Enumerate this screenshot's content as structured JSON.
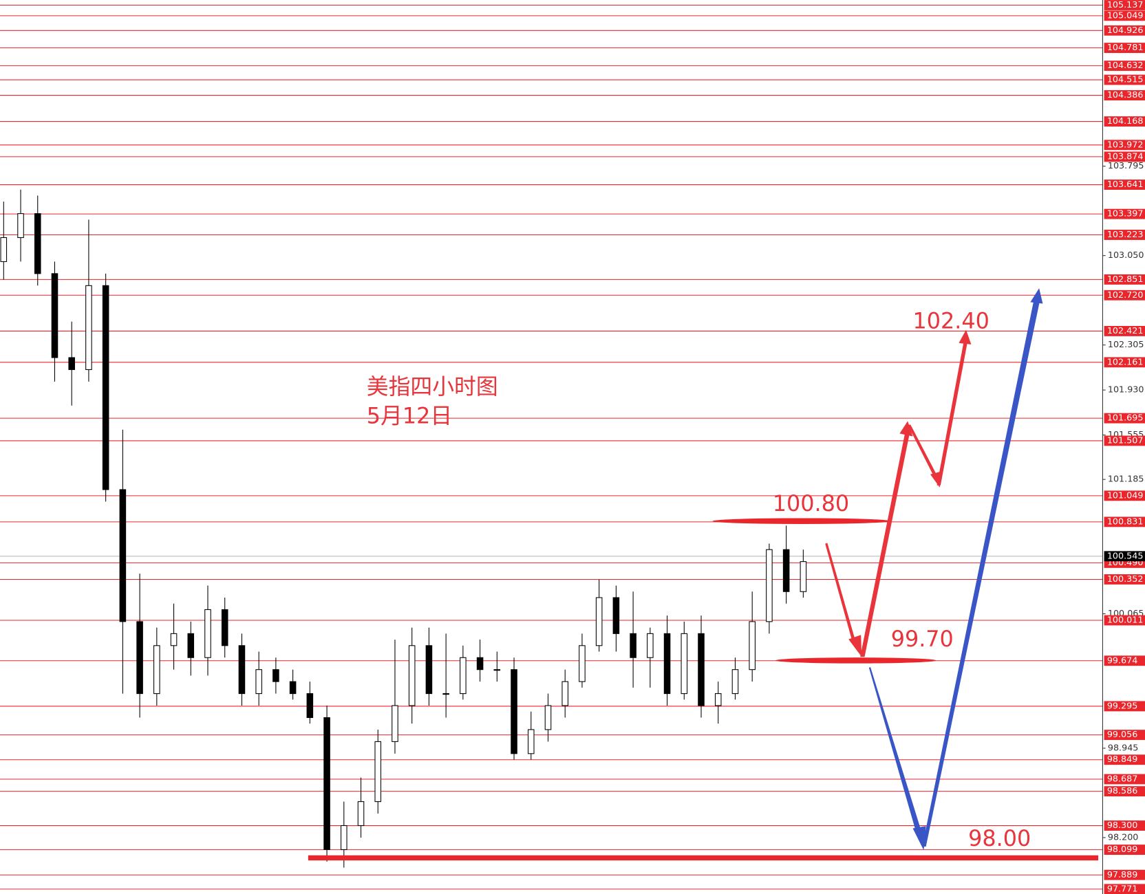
{
  "chart_data": {
    "type": "candlestick",
    "annotations": [
      "美指四小时图",
      "5月12日",
      "102.40",
      "100.80",
      "99.70",
      "98.00"
    ],
    "ylim": [
      97.73,
      105.18
    ],
    "yticks": [
      103.795,
      {
        "value": 103.05,
        "label": "103.050"
      },
      102.305,
      {
        "value": 101.93,
        "label": "101.930"
      },
      101.555,
      101.185,
      100.065,
      98.945,
      {
        "value": 98.2,
        "label": "98.200"
      }
    ],
    "levels": [
      105.137,
      105.049,
      104.926,
      104.781,
      104.632,
      104.515,
      104.386,
      104.168,
      103.972,
      103.874,
      103.641,
      103.397,
      103.223,
      102.851,
      {
        "value": 102.72,
        "label": "102.720"
      },
      102.421,
      102.161,
      101.695,
      101.507,
      101.049,
      100.831,
      {
        "value": 100.49,
        "label": "100.490"
      },
      100.352,
      100.011,
      99.674,
      99.295,
      99.056,
      98.849,
      98.687,
      98.586,
      {
        "value": 98.3,
        "label": "98.300"
      },
      98.099,
      97.889,
      97.771
    ],
    "level_color": "#e8262b",
    "current_price": 100.545,
    "open": [
      103.0,
      103.2,
      103.4,
      102.9,
      102.2,
      102.1,
      102.8,
      101.1,
      100.0,
      99.4,
      99.8,
      99.9,
      99.7,
      100.1,
      99.8,
      99.4,
      99.6,
      99.5,
      99.4,
      99.2,
      98.1,
      98.3,
      98.5,
      99.0,
      99.3,
      99.8,
      99.4,
      99.4,
      99.7,
      99.6,
      99.6,
      98.9,
      99.1,
      99.3,
      99.5,
      99.8,
      100.2,
      99.9,
      99.7,
      99.9,
      99.4,
      99.9,
      99.3,
      99.4,
      99.6,
      100.0,
      100.6,
      100.25
    ],
    "high": [
      103.5,
      103.6,
      103.55,
      103.0,
      102.5,
      103.35,
      102.9,
      101.6,
      100.4,
      99.95,
      100.15,
      100.0,
      100.3,
      100.2,
      99.9,
      99.75,
      99.7,
      99.6,
      99.5,
      99.3,
      98.5,
      98.7,
      99.1,
      99.85,
      99.95,
      99.95,
      99.9,
      99.8,
      99.85,
      99.75,
      99.7,
      99.25,
      99.4,
      99.6,
      99.9,
      100.35,
      100.3,
      100.25,
      99.95,
      100.05,
      100.0,
      100.05,
      99.5,
      99.7,
      100.25,
      100.65,
      100.8,
      100.6
    ],
    "low": [
      102.85,
      103.0,
      102.8,
      102.0,
      101.8,
      102.0,
      101.0,
      99.4,
      99.2,
      99.3,
      99.6,
      99.55,
      99.55,
      99.7,
      99.3,
      99.3,
      99.4,
      99.35,
      99.15,
      98.0,
      97.95,
      98.2,
      98.4,
      98.9,
      99.15,
      99.3,
      99.2,
      99.35,
      99.5,
      99.5,
      98.85,
      98.85,
      99.0,
      99.2,
      99.45,
      99.75,
      99.75,
      99.45,
      99.45,
      99.3,
      99.35,
      99.2,
      99.15,
      99.35,
      99.5,
      99.9,
      100.15,
      100.2
    ],
    "close": [
      103.2,
      103.4,
      102.9,
      102.2,
      102.1,
      102.8,
      101.1,
      100.0,
      99.4,
      99.8,
      99.9,
      99.7,
      100.1,
      99.8,
      99.4,
      99.6,
      99.5,
      99.4,
      99.2,
      98.1,
      98.3,
      98.5,
      99.0,
      99.3,
      99.8,
      99.4,
      99.4,
      99.7,
      99.6,
      99.6,
      98.9,
      99.1,
      99.3,
      99.5,
      99.8,
      100.2,
      99.9,
      99.7,
      99.9,
      99.4,
      99.9,
      99.3,
      99.4,
      99.6,
      100.0,
      100.6,
      100.25,
      100.5
    ]
  }
}
